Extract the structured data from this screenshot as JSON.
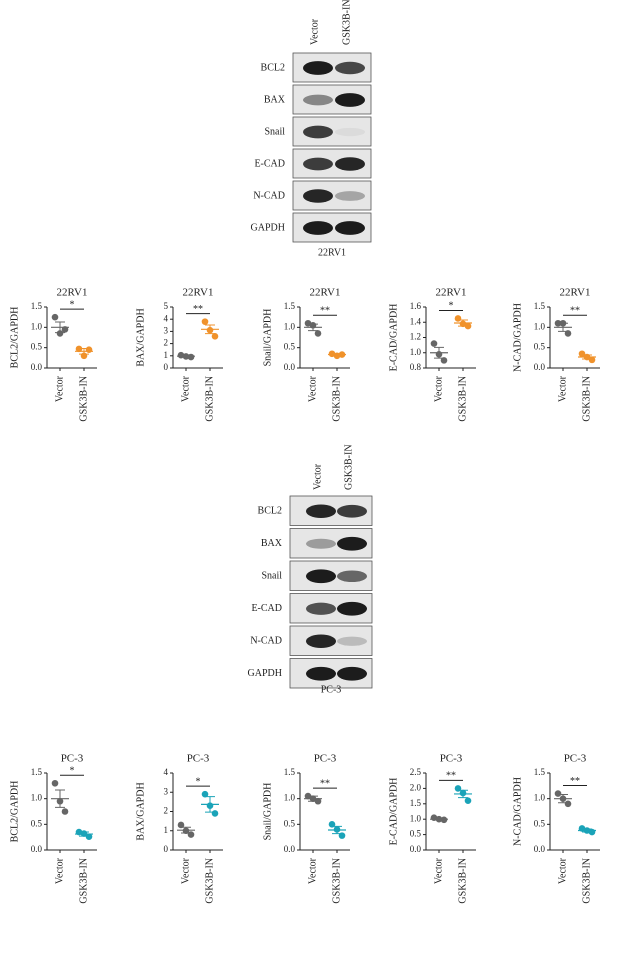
{
  "blots": [
    {
      "lanes": [
        "Vector",
        "GSK3B-IN"
      ],
      "proteins": [
        "BCL2",
        "BAX",
        "Snail",
        "E-CAD",
        "N-CAD",
        "GAPDH"
      ],
      "cell_line": "22RV1"
    },
    {
      "lanes": [
        "Vector",
        "GSK3B-IN"
      ],
      "proteins": [
        "BCL2",
        "BAX",
        "Snail",
        "E-CAD",
        "N-CAD",
        "GAPDH"
      ],
      "cell_line": "PC-3"
    }
  ],
  "chart_data": [
    {
      "type": "dot",
      "title": "22RV1",
      "ylabel": "BCL2/GAPDH",
      "categories": [
        "Vector",
        "GSK3B-IN"
      ],
      "colors": [
        "#666666",
        "#f0922b"
      ],
      "points": [
        [
          1.25,
          0.85,
          0.95
        ],
        [
          0.47,
          0.3,
          0.45
        ]
      ],
      "means": [
        1.0,
        0.41
      ],
      "errors": [
        0.13,
        0.07
      ],
      "significance": "*",
      "ylim": [
        0,
        1.5
      ],
      "yticks": [
        {
          "value": 0,
          "label": "0.0"
        },
        0.5,
        {
          "value": 1,
          "label": "1.0"
        },
        1.5
      ]
    },
    {
      "type": "dot",
      "title": "22RV1",
      "ylabel": "BAX/GAPDH",
      "categories": [
        "Vector",
        "GSK3B-IN"
      ],
      "colors": [
        "#666666",
        "#f0922b"
      ],
      "points": [
        [
          1.05,
          0.95,
          0.9
        ],
        [
          3.8,
          3.1,
          2.6
        ]
      ],
      "means": [
        0.97,
        3.17
      ],
      "errors": [
        0.05,
        0.35
      ],
      "significance": "**",
      "ylim": [
        0,
        5
      ],
      "yticks": [
        0,
        1,
        2,
        3,
        4,
        5
      ]
    },
    {
      "type": "dot",
      "title": "22RV1",
      "ylabel": "Snail/GAPDH",
      "categories": [
        "Vector",
        "GSK3B-IN"
      ],
      "colors": [
        "#666666",
        "#f0922b"
      ],
      "points": [
        [
          1.1,
          1.05,
          0.85
        ],
        [
          0.35,
          0.3,
          0.33
        ]
      ],
      "means": [
        1.0,
        0.33
      ],
      "errors": [
        0.08,
        0.02
      ],
      "significance": "**",
      "ylim": [
        0,
        1.5
      ],
      "yticks": [
        {
          "value": 0,
          "label": "0.0"
        },
        0.5,
        {
          "value": 1,
          "label": "1.0"
        },
        1.5
      ]
    },
    {
      "type": "dot",
      "title": "22RV1",
      "ylabel": "E-CAD/GAPDH",
      "categories": [
        "Vector",
        "GSK3B-IN"
      ],
      "colors": [
        "#666666",
        "#f0922b"
      ],
      "points": [
        [
          1.12,
          0.98,
          0.9
        ],
        [
          1.45,
          1.38,
          1.35
        ]
      ],
      "means": [
        1.0,
        1.39
      ],
      "errors": [
        0.07,
        0.04
      ],
      "significance": "*",
      "ylim": [
        0.8,
        1.6
      ],
      "yticks": [
        0.8,
        {
          "value": 1,
          "label": "1.0"
        },
        1.2,
        1.4,
        1.6
      ]
    },
    {
      "type": "dot",
      "title": "22RV1",
      "ylabel": "N-CAD/GAPDH",
      "categories": [
        "Vector",
        "GSK3B-IN"
      ],
      "colors": [
        "#666666",
        "#f0922b"
      ],
      "points": [
        [
          1.1,
          1.1,
          0.85
        ],
        [
          0.35,
          0.27,
          0.2
        ]
      ],
      "means": [
        1.0,
        0.27
      ],
      "errors": [
        0.1,
        0.05
      ],
      "significance": "**",
      "ylim": [
        0,
        1.5
      ],
      "yticks": [
        {
          "value": 0,
          "label": "0.0"
        },
        0.5,
        {
          "value": 1,
          "label": "1.0"
        },
        1.5
      ]
    },
    {
      "type": "dot",
      "title": "PC-3",
      "ylabel": "BCL2/GAPDH",
      "categories": [
        "Vector",
        "GSK3B-IN"
      ],
      "colors": [
        "#666666",
        "#1aa3b8"
      ],
      "points": [
        [
          1.3,
          0.95,
          0.75
        ],
        [
          0.35,
          0.32,
          0.26
        ]
      ],
      "means": [
        1.0,
        0.31
      ],
      "errors": [
        0.17,
        0.04
      ],
      "significance": "*",
      "ylim": [
        0,
        1.5
      ],
      "yticks": [
        {
          "value": 0,
          "label": "0.0"
        },
        0.5,
        {
          "value": 1,
          "label": "1.0"
        },
        1.5
      ]
    },
    {
      "type": "dot",
      "title": "PC-3",
      "ylabel": "BAX/GAPDH",
      "categories": [
        "Vector",
        "GSK3B-IN"
      ],
      "colors": [
        "#666666",
        "#1aa3b8"
      ],
      "points": [
        [
          1.3,
          1.0,
          0.8
        ],
        [
          2.9,
          2.3,
          1.9
        ]
      ],
      "means": [
        1.03,
        2.37
      ],
      "errors": [
        0.15,
        0.4
      ],
      "significance": "*",
      "ylim": [
        0,
        4
      ],
      "yticks": [
        0,
        1,
        2,
        3,
        4
      ]
    },
    {
      "type": "dot",
      "title": "PC-3",
      "ylabel": "Snail/GAPDH",
      "categories": [
        "Vector",
        "GSK3B-IN"
      ],
      "colors": [
        "#666666",
        "#1aa3b8"
      ],
      "points": [
        [
          1.05,
          1.0,
          0.95
        ],
        [
          0.5,
          0.4,
          0.28
        ]
      ],
      "means": [
        1.0,
        0.39
      ],
      "errors": [
        0.05,
        0.07
      ],
      "significance": "**",
      "ylim": [
        0,
        1.5
      ],
      "yticks": [
        {
          "value": 0,
          "label": "0.0"
        },
        0.5,
        {
          "value": 1,
          "label": "1.0"
        },
        1.5
      ]
    },
    {
      "type": "dot",
      "title": "PC-3",
      "ylabel": "E-CAD/GAPDH",
      "categories": [
        "Vector",
        "GSK3B-IN"
      ],
      "colors": [
        "#666666",
        "#1aa3b8"
      ],
      "points": [
        [
          1.05,
          1.0,
          0.98
        ],
        [
          2.0,
          1.85,
          1.6
        ]
      ],
      "means": [
        1.0,
        1.82
      ],
      "errors": [
        0.02,
        0.12
      ],
      "significance": "**",
      "ylim": [
        0,
        2.5
      ],
      "yticks": [
        {
          "value": 0,
          "label": "0.0"
        },
        0.5,
        {
          "value": 1,
          "label": "1.0"
        },
        1.5,
        {
          "value": 2,
          "label": "2.0"
        },
        2.5
      ]
    },
    {
      "type": "dot",
      "title": "PC-3",
      "ylabel": "N-CAD/GAPDH",
      "categories": [
        "Vector",
        "GSK3B-IN"
      ],
      "colors": [
        "#666666",
        "#1aa3b8"
      ],
      "points": [
        [
          1.1,
          1.0,
          0.9
        ],
        [
          0.42,
          0.38,
          0.35
        ]
      ],
      "means": [
        1.0,
        0.38
      ],
      "errors": [
        0.08,
        0.03
      ],
      "significance": "**",
      "ylim": [
        0,
        1.5
      ],
      "yticks": [
        {
          "value": 0,
          "label": "0.0"
        },
        0.5,
        {
          "value": 1,
          "label": "1.0"
        },
        1.5
      ]
    }
  ]
}
